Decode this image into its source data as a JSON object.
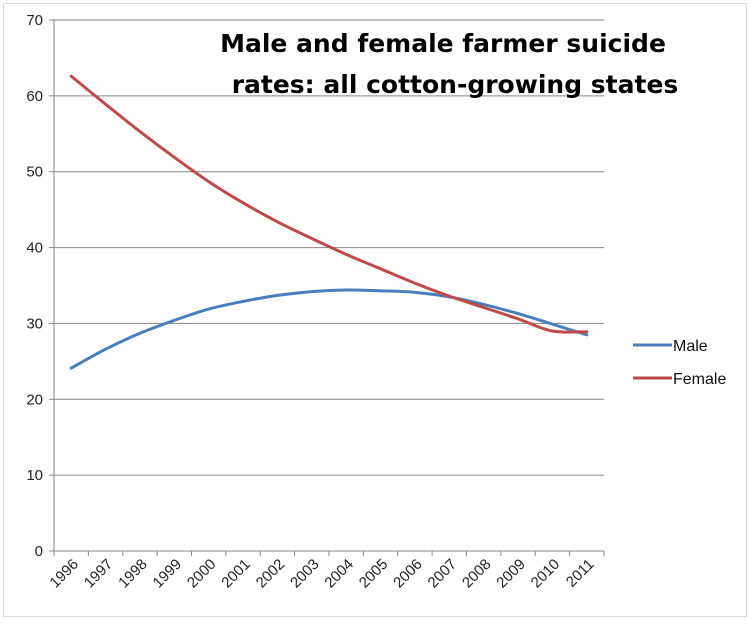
{
  "chart_data": {
    "type": "line",
    "title_lines": [
      "Male and female farmer suicide",
      "rates: all cotton-growing states"
    ],
    "xlabel": "",
    "ylabel": "",
    "categories": [
      "1996",
      "1997",
      "1998",
      "1999",
      "2000",
      "2001",
      "2002",
      "2003",
      "2004",
      "2005",
      "2006",
      "2007",
      "2008",
      "2009",
      "2010",
      "2011"
    ],
    "ylim": [
      0,
      70
    ],
    "yticks": [
      0,
      10,
      20,
      30,
      40,
      50,
      60,
      70
    ],
    "grid": true,
    "legend_position": "right",
    "series": [
      {
        "name": "Male",
        "color": "#4a7ebb",
        "values": [
          24.1,
          26.6,
          28.7,
          30.4,
          31.9,
          32.9,
          33.7,
          34.2,
          34.4,
          34.3,
          34.1,
          33.5,
          32.5,
          31.3,
          29.9,
          28.5
        ]
      },
      {
        "name": "Female",
        "color": "#be4b48",
        "values": [
          62.6,
          58.9,
          55.3,
          51.9,
          48.7,
          45.9,
          43.4,
          41.2,
          39.1,
          37.2,
          35.3,
          33.6,
          32.1,
          30.6,
          29.0,
          28.9
        ]
      }
    ]
  }
}
